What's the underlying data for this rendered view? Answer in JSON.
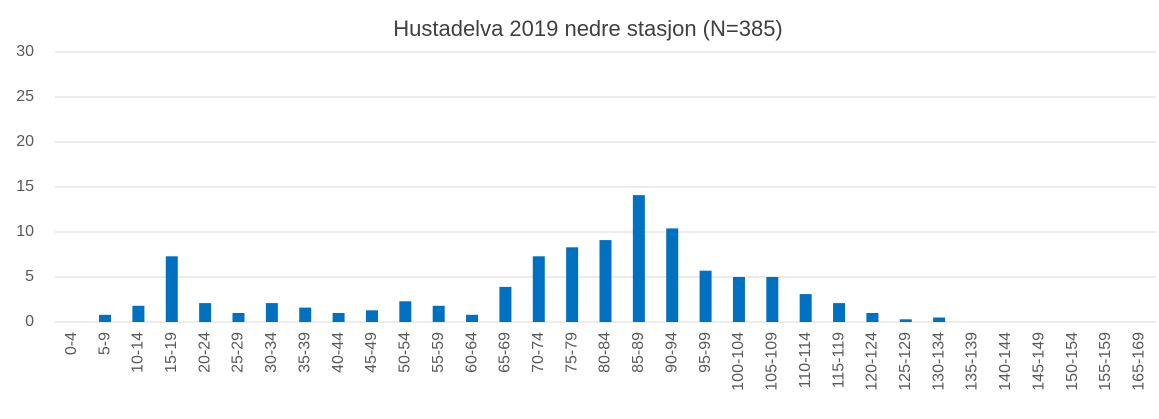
{
  "chart_data": {
    "type": "bar",
    "title": "Hustadelva 2019 nedre stasjon (N=385)",
    "categories": [
      "0-4",
      "5-9",
      "10-14",
      "15-19",
      "20-24",
      "25-29",
      "30-34",
      "35-39",
      "40-44",
      "45-49",
      "50-54",
      "55-59",
      "60-64",
      "65-69",
      "70-74",
      "75-79",
      "80-84",
      "85-89",
      "90-94",
      "95-99",
      "100-104",
      "105-109",
      "110-114",
      "115-119",
      "120-124",
      "125-129",
      "130-134",
      "135-139",
      "140-144",
      "145-149",
      "150-154",
      "155-159",
      "165-169"
    ],
    "values": [
      0,
      0.8,
      1.8,
      7.3,
      2.1,
      1.0,
      2.1,
      1.6,
      1.0,
      1.3,
      2.3,
      1.8,
      0.8,
      3.9,
      7.3,
      8.3,
      9.1,
      14.1,
      10.4,
      5.7,
      5.0,
      5.0,
      3.1,
      2.1,
      1.0,
      0.3,
      0.5,
      0,
      0,
      0,
      0,
      0,
      0
    ],
    "color": "#0070c0",
    "ylim": [
      0,
      30
    ],
    "yticks": [
      0,
      5,
      10,
      15,
      20,
      25,
      30
    ],
    "grid": true
  }
}
